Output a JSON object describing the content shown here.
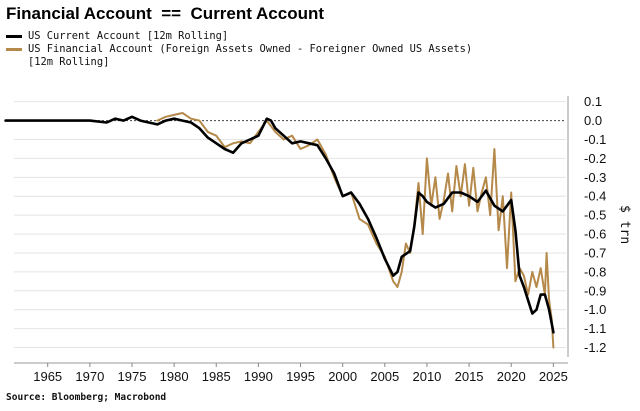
{
  "title": "Financial Account  ==  Current Account",
  "legend": [
    {
      "label": "US Current Account [12m Rolling]",
      "color": "#000000"
    },
    {
      "label": "US Financial Account (Foreign Assets Owned - Foreigner Owned US Assets)\n[12m Rolling]",
      "color": "#b5894a"
    }
  ],
  "source": "Source: Bloomberg; Macrobond",
  "chart_data": {
    "type": "line",
    "title": "Financial Account  ==  Current Account",
    "xlabel": "",
    "ylabel": "$ trn",
    "xlim": [
      1961,
      2026.5
    ],
    "ylim": [
      -1.25,
      0.13
    ],
    "x_ticks": [
      "1965",
      "1970",
      "1975",
      "1980",
      "1985",
      "1990",
      "1995",
      "2000",
      "2005",
      "2010",
      "2015",
      "2020",
      "2025"
    ],
    "y_ticks": [
      "0.1",
      "0.0",
      "-0.1",
      "-0.2",
      "-0.3",
      "-0.4",
      "-0.5",
      "-0.6",
      "-0.7",
      "-0.8",
      "-0.9",
      "-1.0",
      "-1.1",
      "-1.2"
    ],
    "grid": true,
    "zero_line": "dashed",
    "y_axis_side": "right",
    "legend_position": "top-left",
    "series": [
      {
        "name": "US Current Account [12m Rolling]",
        "color": "#000000",
        "x": [
          1960,
          1962,
          1964,
          1966,
          1968,
          1970,
          1972,
          1973,
          1974,
          1975,
          1976,
          1977,
          1978,
          1979,
          1980,
          1981,
          1982,
          1983,
          1984,
          1985,
          1986,
          1987,
          1988,
          1989,
          1990,
          1991,
          1991.5,
          1992,
          1993,
          1994,
          1995,
          1996,
          1997,
          1998,
          1999,
          2000,
          2001,
          2002,
          2003,
          2004,
          2005,
          2006,
          2006.5,
          2007,
          2008,
          2008.5,
          2009,
          2009.5,
          2010,
          2011,
          2012,
          2013,
          2014,
          2015,
          2016,
          2017,
          2018,
          2019,
          2019.5,
          2020,
          2020.5,
          2021,
          2021.5,
          2022,
          2022.5,
          2023,
          2023.5,
          2024,
          2024.5,
          2025
        ],
        "values": [
          0.0,
          0.0,
          0.0,
          0.0,
          0.0,
          0.0,
          -0.01,
          0.01,
          0.0,
          0.02,
          0.0,
          -0.01,
          -0.02,
          0.0,
          0.01,
          0.0,
          -0.01,
          -0.04,
          -0.09,
          -0.12,
          -0.15,
          -0.17,
          -0.12,
          -0.1,
          -0.08,
          0.01,
          0.0,
          -0.04,
          -0.08,
          -0.12,
          -0.11,
          -0.12,
          -0.13,
          -0.2,
          -0.28,
          -0.4,
          -0.38,
          -0.44,
          -0.52,
          -0.62,
          -0.73,
          -0.82,
          -0.8,
          -0.72,
          -0.69,
          -0.56,
          -0.38,
          -0.4,
          -0.43,
          -0.46,
          -0.44,
          -0.38,
          -0.38,
          -0.4,
          -0.43,
          -0.37,
          -0.45,
          -0.48,
          -0.45,
          -0.42,
          -0.58,
          -0.82,
          -0.88,
          -0.95,
          -1.02,
          -1.0,
          -0.92,
          -0.92,
          -1.0,
          -1.12
        ]
      },
      {
        "name": "US Financial Account (Foreign Assets Owned - Foreigner Owned US Assets) [12m Rolling]",
        "color": "#b5894a",
        "x": [
          1978,
          1979,
          1980,
          1981,
          1982,
          1983,
          1984,
          1985,
          1986,
          1987,
          1988,
          1989,
          1990,
          1991,
          1992,
          1993,
          1994,
          1995,
          1996,
          1997,
          1998,
          1999,
          2000,
          2001,
          2002,
          2003,
          2004,
          2005,
          2006,
          2006.5,
          2007,
          2007.5,
          2008,
          2008.5,
          2009,
          2009.5,
          2010,
          2010.5,
          2011,
          2011.5,
          2012,
          2012.5,
          2013,
          2013.5,
          2014,
          2014.5,
          2015,
          2015.5,
          2016,
          2016.5,
          2017,
          2017.5,
          2018,
          2018.5,
          2019,
          2019.5,
          2020,
          2020.5,
          2021,
          2021.5,
          2022,
          2022.5,
          2023,
          2023.5,
          2024,
          2024.2,
          2024.5,
          2024.8,
          2025
        ],
        "values": [
          0.0,
          0.02,
          0.03,
          0.04,
          0.01,
          0.0,
          -0.06,
          -0.08,
          -0.14,
          -0.12,
          -0.11,
          -0.12,
          -0.06,
          0.0,
          -0.06,
          -0.1,
          -0.08,
          -0.15,
          -0.13,
          -0.1,
          -0.18,
          -0.3,
          -0.4,
          -0.38,
          -0.52,
          -0.55,
          -0.65,
          -0.72,
          -0.85,
          -0.88,
          -0.8,
          -0.65,
          -0.7,
          -0.55,
          -0.33,
          -0.6,
          -0.2,
          -0.45,
          -0.3,
          -0.52,
          -0.42,
          -0.28,
          -0.48,
          -0.24,
          -0.4,
          -0.23,
          -0.45,
          -0.25,
          -0.48,
          -0.38,
          -0.3,
          -0.5,
          -0.15,
          -0.58,
          -0.4,
          -0.78,
          -0.38,
          -0.85,
          -0.78,
          -0.82,
          -0.92,
          -0.8,
          -0.88,
          -0.78,
          -0.92,
          -0.7,
          -0.95,
          -1.05,
          -1.2
        ]
      }
    ]
  }
}
